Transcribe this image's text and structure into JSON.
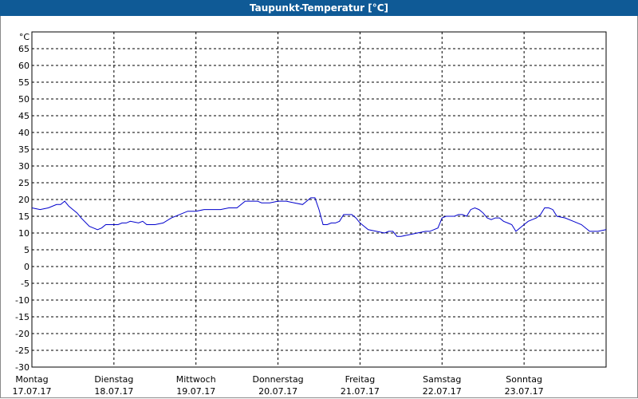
{
  "chart_data": {
    "type": "line",
    "title": "Taupunkt-Temperatur [°C]",
    "ylabel": "°C",
    "ylim": [
      -30,
      70
    ],
    "yticks": [
      -30,
      -25,
      -20,
      -15,
      -10,
      -5,
      0,
      5,
      10,
      15,
      20,
      25,
      30,
      35,
      40,
      45,
      50,
      55,
      60,
      65
    ],
    "xlim": [
      0,
      7
    ],
    "grid": true,
    "x_ticks": [
      {
        "day": "Montag",
        "date": "17.07.17"
      },
      {
        "day": "Dienstag",
        "date": "18.07.17"
      },
      {
        "day": "Mittwoch",
        "date": "19.07.17"
      },
      {
        "day": "Donnerstag",
        "date": "20.07.17"
      },
      {
        "day": "Freitag",
        "date": "21.07.17"
      },
      {
        "day": "Samstag",
        "date": "22.07.17"
      },
      {
        "day": "Sonntag",
        "date": "23.07.17"
      }
    ],
    "series": [
      {
        "color": "#0000cc",
        "x": [
          0,
          0.1,
          0.2,
          0.3,
          0.35,
          0.4,
          0.45,
          0.5,
          0.55,
          0.6,
          0.7,
          0.75,
          0.8,
          0.85,
          0.9,
          0.95,
          1.0,
          1.05,
          1.1,
          1.15,
          1.2,
          1.3,
          1.35,
          1.4,
          1.45,
          1.5,
          1.6,
          1.7,
          1.8,
          1.9,
          2.0,
          2.1,
          2.2,
          2.3,
          2.4,
          2.5,
          2.6,
          2.7,
          2.75,
          2.8,
          2.85,
          2.9,
          3.0,
          3.05,
          3.1,
          3.2,
          3.3,
          3.4,
          3.45,
          3.5,
          3.55,
          3.6,
          3.65,
          3.7,
          3.75,
          3.8,
          3.85,
          3.9,
          3.95,
          4.0,
          4.05,
          4.1,
          4.2,
          4.3,
          4.35,
          4.4,
          4.45,
          4.5,
          4.6,
          4.7,
          4.8,
          4.85,
          4.9,
          4.95,
          5.0,
          5.05,
          5.1,
          5.15,
          5.2,
          5.25,
          5.3,
          5.35,
          5.4,
          5.45,
          5.5,
          5.55,
          5.6,
          5.65,
          5.7,
          5.75,
          5.8,
          5.85,
          5.9,
          6.0,
          6.05,
          6.1,
          6.15,
          6.2,
          6.25,
          6.3,
          6.35,
          6.4,
          6.5,
          6.6,
          6.7,
          6.8,
          6.9,
          7.0
        ],
        "y": [
          17.5,
          17,
          17.5,
          18.5,
          18.5,
          19.5,
          18,
          17,
          16,
          14.5,
          12,
          11.5,
          11,
          11.5,
          12.5,
          12.5,
          12.5,
          12.5,
          13,
          13,
          13.5,
          13,
          13.5,
          12.5,
          12.5,
          12.5,
          13,
          14.5,
          15.5,
          16.5,
          16.5,
          17,
          17,
          17,
          17.5,
          17.5,
          19.5,
          19.5,
          19.5,
          19,
          19,
          19,
          19.5,
          19.5,
          19.5,
          19,
          18.5,
          20.5,
          20.5,
          17,
          12.5,
          12.5,
          13,
          13,
          13.5,
          15.5,
          15.5,
          15.5,
          14.5,
          13,
          12,
          11,
          10.5,
          10,
          10.5,
          10.5,
          9,
          9,
          9.5,
          10,
          10.5,
          10.5,
          11,
          11.5,
          14.5,
          15,
          15,
          15,
          15.5,
          15.5,
          15,
          17,
          17.5,
          17,
          16,
          14.5,
          14,
          14.5,
          14.5,
          13.5,
          13,
          12.5,
          10.5,
          12.5,
          13.5,
          14,
          14.5,
          15.5,
          17.5,
          17.5,
          17,
          15,
          14.5,
          13.5,
          12.5,
          10.5,
          10.5,
          11
        ]
      }
    ]
  }
}
